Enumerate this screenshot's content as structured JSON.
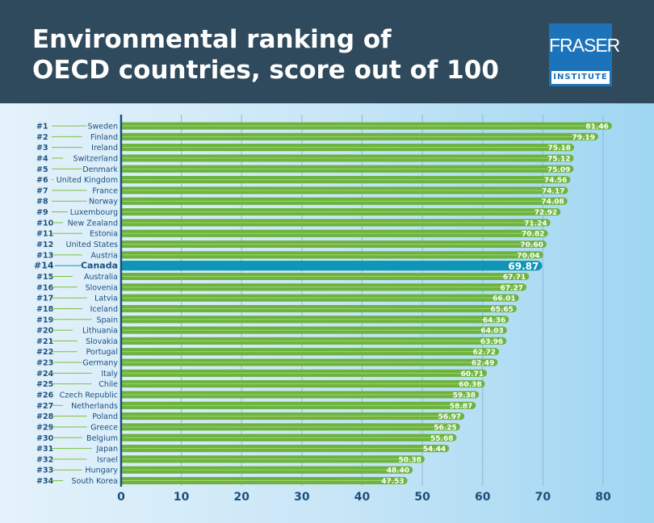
{
  "header": {
    "title": "Environmental ranking of\nOECD countries, score out of 100",
    "logo_line1": "FRASER",
    "logo_line2": "INSTITUTE"
  },
  "colors": {
    "header": "#2f4a5c",
    "bar": "#6cb33f",
    "highlight": "#0f95b5",
    "text": "#1d4f7c"
  },
  "chart_data": {
    "type": "bar",
    "orientation": "horizontal",
    "title": "Environmental ranking of OECD countries, score out of 100",
    "xlim": [
      0,
      80
    ],
    "xticks": [
      0,
      10,
      20,
      30,
      40,
      50,
      60,
      70,
      80
    ],
    "highlight": "Canada",
    "ranks": [
      "#1",
      "#2",
      "#3",
      "#4",
      "#5",
      "#6",
      "#7",
      "#8",
      "#9",
      "#10",
      "#11",
      "#12",
      "#13",
      "#14",
      "#15",
      "#16",
      "#17",
      "#18",
      "#19",
      "#20",
      "#21",
      "#22",
      "#23",
      "#24",
      "#25",
      "#26",
      "#27",
      "#28",
      "#29",
      "#30",
      "#31",
      "#32",
      "#33",
      "#34"
    ],
    "categories": [
      "Sweden",
      "Finland",
      "Ireland",
      "Switzerland",
      "Denmark",
      "United Kingdom",
      "France",
      "Norway",
      "Luxembourg",
      "New Zealand",
      "Estonia",
      "United States",
      "Austria",
      "Canada",
      "Australia",
      "Slovenia",
      "Latvia",
      "Iceland",
      "Spain",
      "Lithuania",
      "Slovakia",
      "Portugal",
      "Germany",
      "Italy",
      "Chile",
      "Czech Republic",
      "Netherlands",
      "Poland",
      "Greece",
      "Belgium",
      "Japan",
      "Israel",
      "Hungary",
      "South Korea"
    ],
    "values": [
      81.46,
      79.19,
      75.18,
      75.12,
      75.09,
      74.56,
      74.17,
      74.08,
      72.92,
      71.24,
      70.82,
      70.6,
      70.04,
      69.87,
      67.71,
      67.27,
      66.01,
      65.65,
      64.36,
      64.03,
      63.96,
      62.72,
      62.49,
      60.71,
      60.38,
      59.38,
      58.87,
      56.97,
      56.25,
      55.68,
      54.44,
      50.38,
      48.4,
      47.53
    ],
    "labels": [
      "81.46",
      "79.19",
      "75.18",
      "75.12",
      "75.09",
      "74.56",
      "74.17",
      "74.08",
      "72.92",
      "71.24",
      "70.82",
      "70.60",
      "70.04",
      "69.87",
      "67.71",
      "67.27",
      "66.01",
      "65.65",
      "64.36",
      "64.03",
      "63.96",
      "62.72",
      "62.49",
      "60.71",
      "60.38",
      "59.38",
      "58.87",
      "56.97",
      "56.25",
      "55.68",
      "54.44",
      "50.38",
      "48.40",
      "47.53"
    ]
  }
}
